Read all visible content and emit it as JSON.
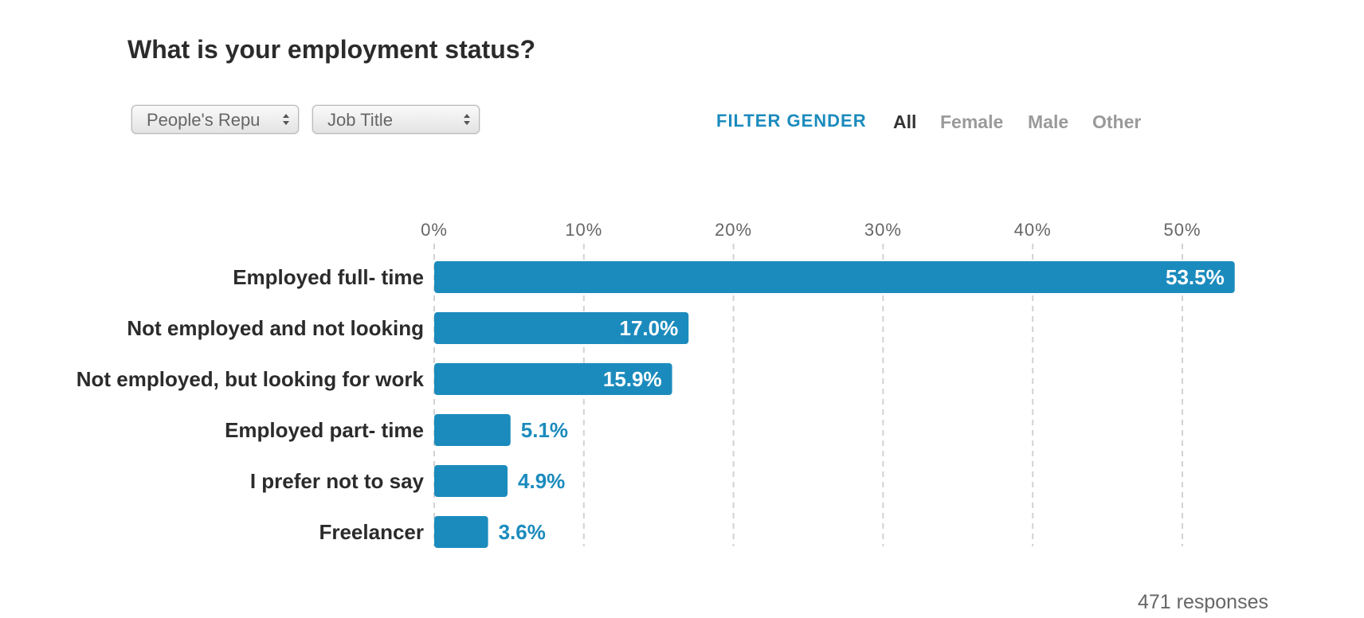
{
  "title": "What is your employment status?",
  "filters": {
    "country": "People's Repu",
    "job_title": "Job Title",
    "gender_label": "FILTER GENDER",
    "gender_options": [
      "All",
      "Female",
      "Male",
      "Other"
    ],
    "gender_selected": "All"
  },
  "responses_text": "471 responses",
  "colors": {
    "bar": "#1b8bbd",
    "accent": "#1b8bbd",
    "grid": "#d2d2d2"
  },
  "chart_data": {
    "type": "bar",
    "orientation": "horizontal",
    "categories": [
      "Employed full- time",
      "Not employed and not looking",
      "Not employed, but looking for work",
      "Employed part- time",
      "I prefer not to say",
      "Freelancer"
    ],
    "values": [
      53.5,
      17.0,
      15.9,
      5.1,
      4.9,
      3.6
    ],
    "value_labels": [
      "53.5%",
      "17.0%",
      "15.9%",
      "5.1%",
      "4.9%",
      "3.6%"
    ],
    "xticks": [
      0,
      10,
      20,
      30,
      40,
      50
    ],
    "xtick_labels": [
      "0%",
      "10%",
      "20%",
      "30%",
      "40%",
      "50%"
    ],
    "xlim": [
      0,
      53.5
    ],
    "grid": true
  }
}
